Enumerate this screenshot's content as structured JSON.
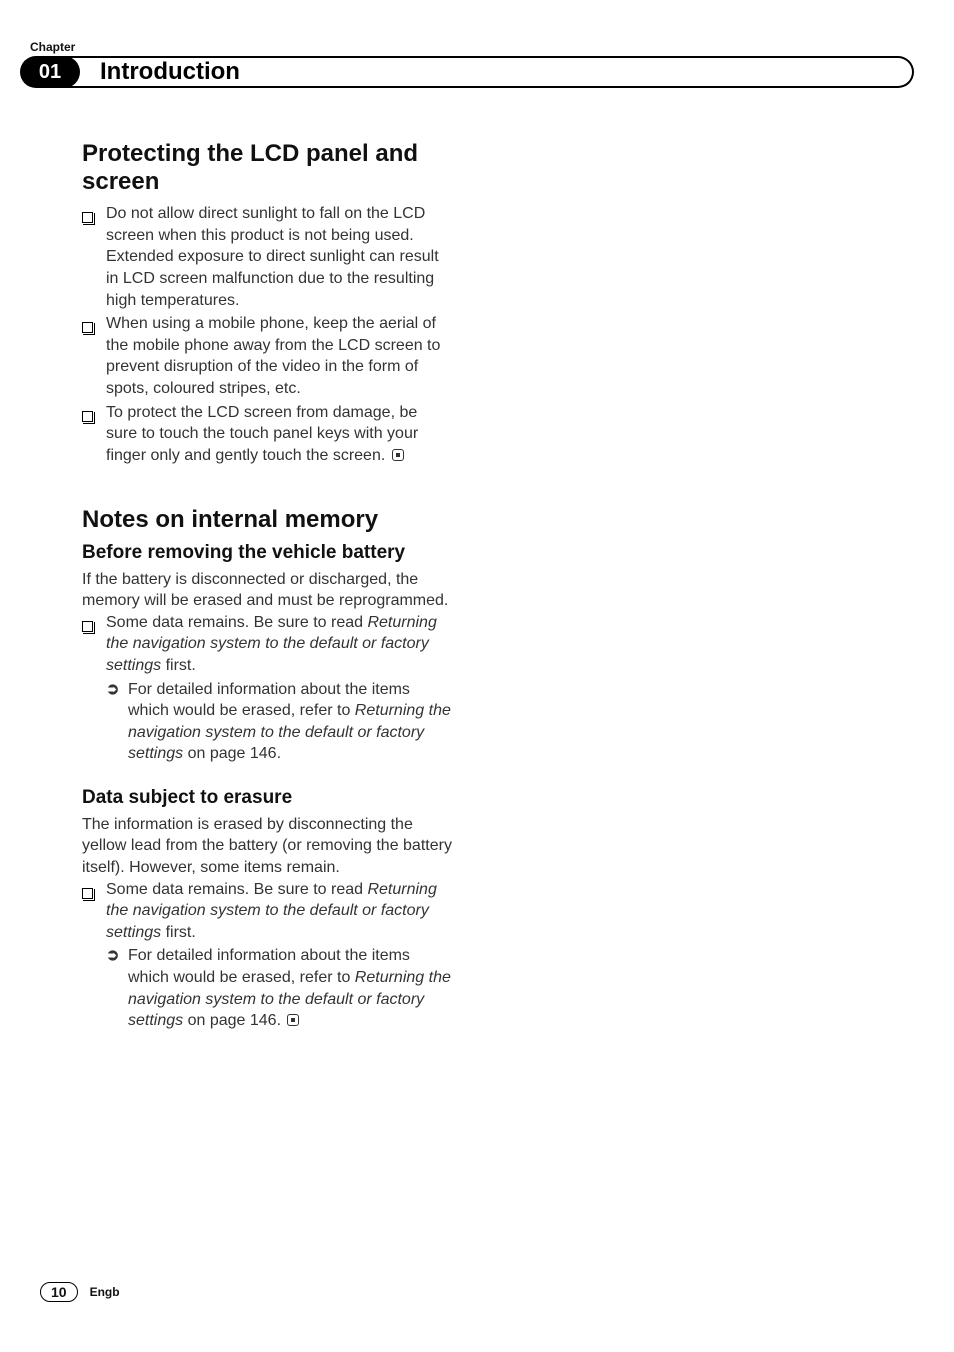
{
  "header": {
    "chapter_label": "Chapter",
    "chapter_number": "01",
    "title": "Introduction"
  },
  "section1": {
    "heading": "Protecting the LCD panel and screen",
    "bullets": [
      "Do not allow direct sunlight to fall on the LCD screen when this product is not being used. Extended exposure to direct sunlight can result in LCD screen malfunction due to the resulting high temperatures.",
      "When using a mobile phone, keep the aerial of the mobile phone away from the LCD screen to prevent disruption of the video in the form of spots, coloured stripes, etc.",
      "To protect the LCD screen from damage, be sure to touch the touch panel keys with your finger only and gently touch the screen."
    ]
  },
  "section2": {
    "heading": "Notes on internal memory",
    "sub1": {
      "heading": "Before removing the vehicle battery",
      "intro": "If the battery is disconnected or discharged, the memory will be erased and must be reprogrammed.",
      "bullet_pre": "Some data remains. Be sure to read ",
      "bullet_em": "Returning the navigation system to the default or factory settings",
      "bullet_post": " first.",
      "sub_bullet_pre": "For detailed information about the items which would be erased, refer to ",
      "sub_bullet_em": "Returning the navigation system to the default or factory settings",
      "sub_bullet_post": " on page 146."
    },
    "sub2": {
      "heading": "Data subject to erasure",
      "intro": "The information is erased by disconnecting the yellow lead from the battery (or removing the battery itself). However, some items remain.",
      "bullet_pre": "Some data remains. Be sure to read ",
      "bullet_em": "Returning the navigation system to the default or factory settings",
      "bullet_post": " first.",
      "sub_bullet_pre": "For detailed information about the items which would be erased, refer to ",
      "sub_bullet_em": "Returning the navigation system to the default or factory settings",
      "sub_bullet_post": " on page 146."
    }
  },
  "footer": {
    "page_number": "10",
    "lang": "Engb"
  }
}
